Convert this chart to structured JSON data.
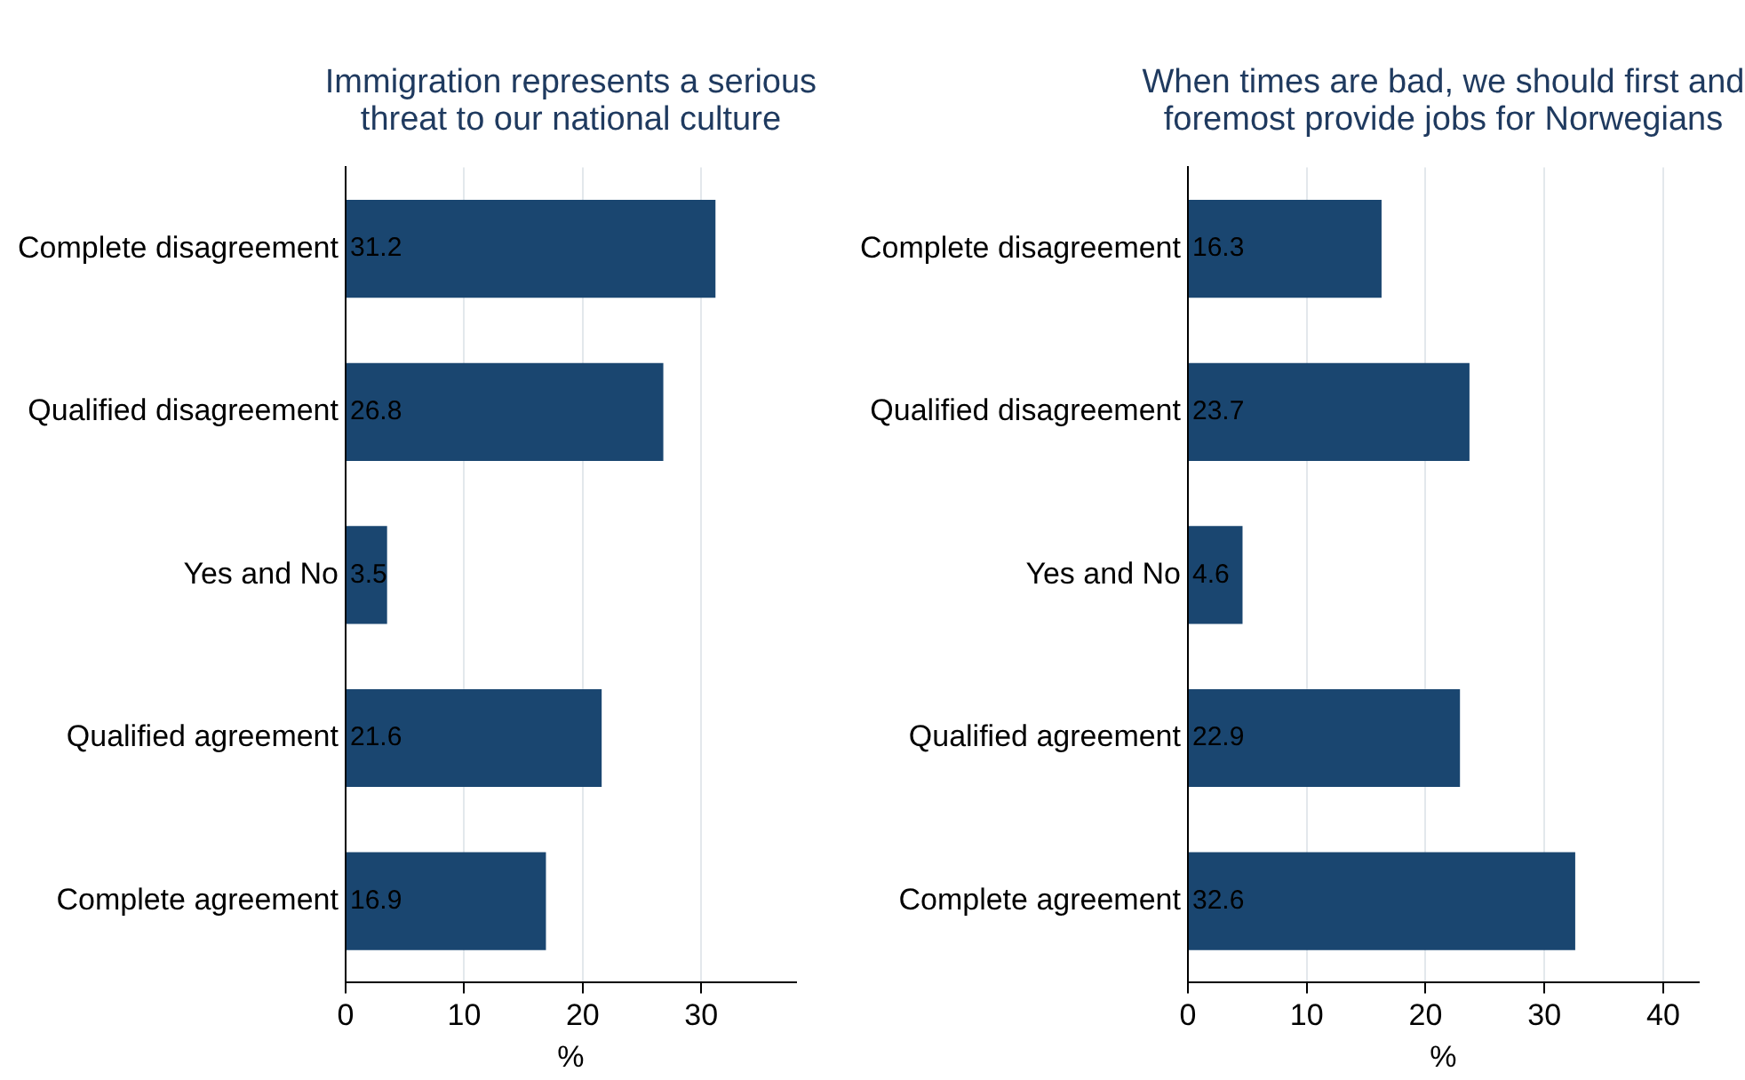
{
  "chart_data": [
    {
      "type": "bar",
      "orientation": "horizontal",
      "title": "Immigration represents a serious threat to our national culture",
      "xlabel": "%",
      "categories": [
        "Complete disagreement",
        "Qualified disagreement",
        "Yes and No",
        "Qualified agreement",
        "Complete agreement"
      ],
      "values": [
        31.2,
        26.8,
        3.5,
        21.6,
        16.9
      ],
      "color": "#1a4670",
      "xlim": [
        0,
        38
      ],
      "xticks": [
        0,
        10,
        20,
        30
      ],
      "grid": "x",
      "data_labels": true,
      "legend": false
    },
    {
      "type": "bar",
      "orientation": "horizontal",
      "title": "When times are bad, we should first and foremost provide jobs for Norwegians",
      "xlabel": "%",
      "categories": [
        "Complete disagreement",
        "Qualified disagreement",
        "Yes and No",
        "Qualified agreement",
        "Complete agreement"
      ],
      "values": [
        16.3,
        23.7,
        4.6,
        22.9,
        32.6
      ],
      "color": "#1a4670",
      "xlim": [
        0,
        43
      ],
      "xticks": [
        0,
        10,
        20,
        30,
        40
      ],
      "grid": "x",
      "data_labels": true,
      "legend": false
    }
  ]
}
